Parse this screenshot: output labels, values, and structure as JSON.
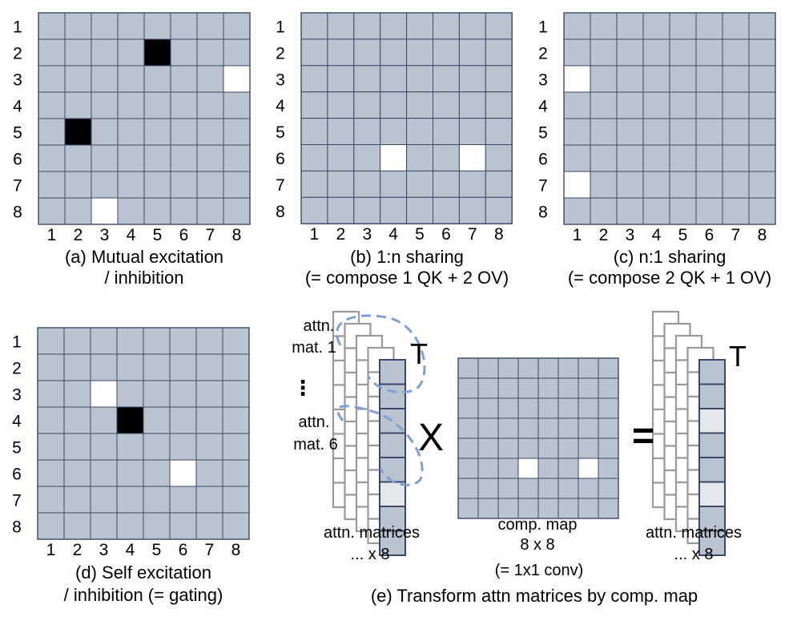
{
  "colors": {
    "cell": "#b9c4d0",
    "grid_line": "#3a4a66",
    "excite": "#000000",
    "inhibit": "#ffffff",
    "light_cell": "#e4e8eb",
    "stack_outline": "#9a9a9a",
    "callout": "#7f9fd4"
  },
  "panels": [
    {
      "id": "a",
      "caption": [
        "(a) Mutual excitation",
        "/ inhibition"
      ],
      "row_labels": [
        "1",
        "2",
        "3",
        "4",
        "5",
        "6",
        "7",
        "8"
      ],
      "col_labels": [
        "1",
        "2",
        "3",
        "4",
        "5",
        "6",
        "7",
        "8"
      ],
      "black_cells": [
        [
          2,
          5
        ],
        [
          5,
          2
        ]
      ],
      "white_cells": [
        [
          3,
          8
        ],
        [
          8,
          3
        ]
      ]
    },
    {
      "id": "b",
      "caption": [
        "(b) 1:n sharing",
        "(= compose 1 QK + 2 OV)"
      ],
      "row_labels": [
        "1",
        "2",
        "3",
        "4",
        "5",
        "6",
        "7",
        "8"
      ],
      "col_labels": [
        "1",
        "2",
        "3",
        "4",
        "5",
        "6",
        "7",
        "8"
      ],
      "black_cells": [],
      "white_cells": [
        [
          6,
          4
        ],
        [
          6,
          7
        ]
      ]
    },
    {
      "id": "c",
      "caption": [
        "(c) n:1 sharing",
        "(= compose 2 QK + 1 OV)"
      ],
      "row_labels": [
        "1",
        "2",
        "3",
        "4",
        "5",
        "6",
        "7",
        "8"
      ],
      "col_labels": [
        "1",
        "2",
        "3",
        "4",
        "5",
        "6",
        "7",
        "8"
      ],
      "black_cells": [],
      "white_cells": [
        [
          3,
          1
        ],
        [
          7,
          1
        ]
      ]
    },
    {
      "id": "d",
      "caption": [
        "(d) Self excitation",
        "/ inhibition (= gating)"
      ],
      "row_labels": [
        "1",
        "2",
        "3",
        "4",
        "5",
        "6",
        "7",
        "8"
      ],
      "col_labels": [
        "1",
        "2",
        "3",
        "4",
        "5",
        "6",
        "7",
        "8"
      ],
      "black_cells": [
        [
          4,
          4
        ]
      ],
      "white_cells": [
        [
          3,
          3
        ],
        [
          6,
          6
        ]
      ]
    }
  ],
  "panel_e": {
    "caption": "(e) Transform attn matrices by comp. map",
    "label_attn1": [
      "attn.",
      "mat. 1"
    ],
    "label_dots": "⋮",
    "label_attn6": [
      "attn.",
      "mat. 6"
    ],
    "transpose_label": "T",
    "times_symbol": "X",
    "equals_symbol": "=",
    "left_stack_caption": [
      "attn. matrices",
      "... x 8"
    ],
    "comp_map_caption": [
      "comp. map",
      "8 x 8",
      "(= 1x1 conv)"
    ],
    "right_stack_caption": [
      "attn. matrices",
      "... x 8"
    ],
    "comp_map_white_cells": [
      [
        6,
        4
      ],
      [
        6,
        7
      ]
    ],
    "left_column_light_cells": [
      6
    ],
    "right_column_light_cells": [
      3,
      6
    ]
  }
}
